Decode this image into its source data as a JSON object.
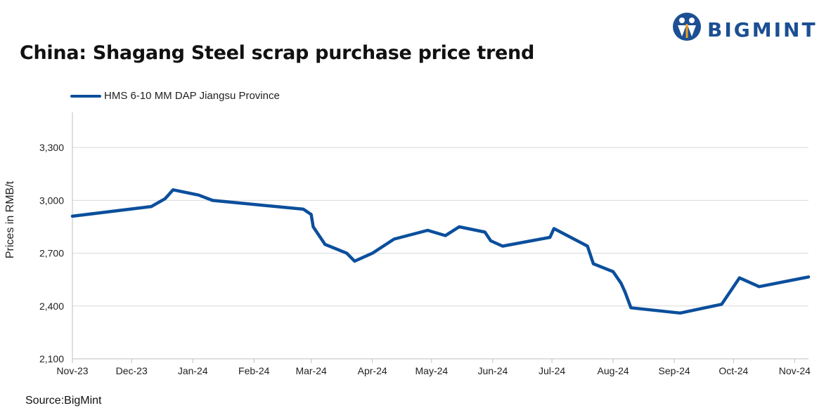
{
  "brand": {
    "name": "BIGMINT",
    "color": "#1c4f93"
  },
  "title": "China: Shagang Steel scrap purchase price trend",
  "source": "Source:BigMint",
  "chart_data": {
    "type": "line",
    "title": "China: Shagang Steel scrap purchase price trend",
    "ylabel": "Prices in RMB/t",
    "xlabel": "",
    "ylim": [
      2100,
      3500
    ],
    "yticks": [
      2100,
      2400,
      2700,
      3000,
      3300
    ],
    "ytick_labels": [
      "2,100",
      "2,400",
      "2,700",
      "3,000",
      "3,300"
    ],
    "xlim": [
      "2023-11-01",
      "2024-11-08"
    ],
    "xticks": [
      "2023-11-01",
      "2023-12-01",
      "2024-01-01",
      "2024-02-01",
      "2024-03-01",
      "2024-04-01",
      "2024-05-01",
      "2024-06-01",
      "2024-07-01",
      "2024-08-01",
      "2024-09-01",
      "2024-10-01",
      "2024-11-01"
    ],
    "xtick_labels": [
      "Nov-23",
      "Dec-23",
      "Jan-24",
      "Feb-24",
      "Mar-24",
      "Apr-24",
      "May-24",
      "Jun-24",
      "Jul-24",
      "Aug-24",
      "Sep-24",
      "Oct-24",
      "Nov-24"
    ],
    "grid": "horizontal",
    "legend_position": "top-left",
    "series": [
      {
        "name": "HMS 6-10 MM DAP Jiangsu Province",
        "color": "#0b4f9c",
        "points": [
          [
            "2023-11-01",
            2910
          ],
          [
            "2023-12-11",
            2965
          ],
          [
            "2023-12-18",
            3010
          ],
          [
            "2023-12-22",
            3060
          ],
          [
            "2024-01-04",
            3030
          ],
          [
            "2024-01-11",
            3000
          ],
          [
            "2024-02-26",
            2950
          ],
          [
            "2024-03-01",
            2920
          ],
          [
            "2024-03-02",
            2850
          ],
          [
            "2024-03-08",
            2750
          ],
          [
            "2024-03-19",
            2700
          ],
          [
            "2024-03-23",
            2655
          ],
          [
            "2024-04-01",
            2700
          ],
          [
            "2024-04-12",
            2780
          ],
          [
            "2024-04-29",
            2830
          ],
          [
            "2024-05-08",
            2800
          ],
          [
            "2024-05-15",
            2850
          ],
          [
            "2024-05-28",
            2820
          ],
          [
            "2024-05-31",
            2770
          ],
          [
            "2024-06-06",
            2740
          ],
          [
            "2024-06-30",
            2790
          ],
          [
            "2024-07-02",
            2840
          ],
          [
            "2024-07-19",
            2740
          ],
          [
            "2024-07-22",
            2640
          ],
          [
            "2024-08-01",
            2595
          ],
          [
            "2024-08-05",
            2530
          ],
          [
            "2024-08-07",
            2480
          ],
          [
            "2024-08-10",
            2390
          ],
          [
            "2024-09-04",
            2360
          ],
          [
            "2024-09-25",
            2410
          ],
          [
            "2024-10-04",
            2560
          ],
          [
            "2024-10-14",
            2510
          ],
          [
            "2024-11-08",
            2565
          ]
        ]
      }
    ]
  }
}
